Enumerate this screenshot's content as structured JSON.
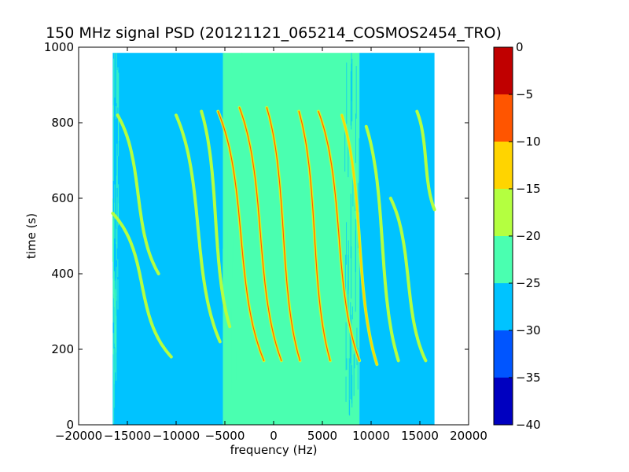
{
  "chart_data": {
    "type": "heatmap",
    "title": "150 MHz signal PSD (20121121_065214_COSMOS2454_TRO)",
    "xlabel": "frequency (Hz)",
    "ylabel": "time (s)",
    "xlim": [
      -20000,
      20000
    ],
    "ylim": [
      0,
      1000
    ],
    "x_ticks": [
      -20000,
      -15000,
      -10000,
      -5000,
      0,
      5000,
      10000,
      15000,
      20000
    ],
    "x_tick_labels": [
      "−20000",
      "−15000",
      "−10000",
      "−5000",
      "0",
      "5000",
      "10000",
      "15000",
      "20000"
    ],
    "y_ticks": [
      0,
      200,
      400,
      600,
      800,
      1000
    ],
    "y_tick_labels": [
      "0",
      "200",
      "400",
      "600",
      "800",
      "1000"
    ],
    "data_extent": {
      "x": [
        -16500,
        16500
      ],
      "y": [
        0,
        985
      ]
    },
    "colorbar": {
      "range": [
        -40,
        0
      ],
      "ticks": [
        0,
        -5,
        -10,
        -15,
        -20,
        -25,
        -30,
        -35,
        -40
      ],
      "tick_labels": [
        "0",
        "−5",
        "−10",
        "−15",
        "−20",
        "−25",
        "−30",
        "−35",
        "−40"
      ],
      "levels": [
        {
          "from": -40,
          "to": -35,
          "color": "#0000c0"
        },
        {
          "from": -35,
          "to": -30,
          "color": "#0055ff"
        },
        {
          "from": -30,
          "to": -25,
          "color": "#00c3ff"
        },
        {
          "from": -25,
          "to": -20,
          "color": "#4affb0"
        },
        {
          "from": -20,
          "to": -15,
          "color": "#b4ff40"
        },
        {
          "from": -15,
          "to": -10,
          "color": "#ffd400"
        },
        {
          "from": -10,
          "to": -5,
          "color": "#ff5500"
        },
        {
          "from": -5,
          "to": 0,
          "color": "#c00000"
        }
      ]
    },
    "background_regions": [
      {
        "x": [
          -16500,
          -5200
        ],
        "level": -27.5
      },
      {
        "x": [
          -5200,
          8800
        ],
        "level": -22.5
      },
      {
        "x": [
          8800,
          16500
        ],
        "level": -27.5
      }
    ],
    "traces": [
      {
        "x_start": -16500,
        "y_start": 560,
        "x_end": -10500,
        "y_end": 180,
        "peak_level": -17.5
      },
      {
        "x_start": -16000,
        "y_start": 820,
        "x_end": -11800,
        "y_end": 400,
        "peak_level": -17.5
      },
      {
        "x_start": -10000,
        "y_start": 820,
        "x_end": -5500,
        "y_end": 220,
        "peak_level": -17.5
      },
      {
        "x_start": -7400,
        "y_start": 830,
        "x_end": -4500,
        "y_end": 260,
        "peak_level": -17.5
      },
      {
        "x_start": -5700,
        "y_start": 830,
        "x_end": -1000,
        "y_end": 170,
        "peak_level": -7.5
      },
      {
        "x_start": -3500,
        "y_start": 840,
        "x_end": 800,
        "y_end": 170,
        "peak_level": -7.5
      },
      {
        "x_start": -700,
        "y_start": 840,
        "x_end": 2700,
        "y_end": 170,
        "peak_level": -7.5
      },
      {
        "x_start": 2600,
        "y_start": 830,
        "x_end": 5800,
        "y_end": 170,
        "peak_level": -7.5
      },
      {
        "x_start": 4600,
        "y_start": 830,
        "x_end": 8800,
        "y_end": 170,
        "peak_level": -7.5
      },
      {
        "x_start": 7000,
        "y_start": 820,
        "x_end": 10600,
        "y_end": 160,
        "peak_level": -12.5
      },
      {
        "x_start": 9500,
        "y_start": 790,
        "x_end": 12800,
        "y_end": 170,
        "peak_level": -17.5
      },
      {
        "x_start": 12000,
        "y_start": 600,
        "x_end": 15600,
        "y_end": 170,
        "peak_level": -17.5
      },
      {
        "x_start": 14700,
        "y_start": 830,
        "x_end": 16500,
        "y_end": 570,
        "peak_level": -17.5
      }
    ]
  }
}
